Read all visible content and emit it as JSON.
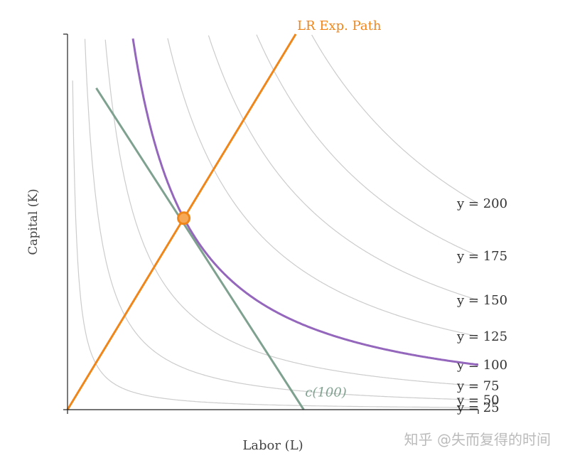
{
  "chart_data": {
    "type": "line",
    "title": "",
    "xlabel": "Labor (L)",
    "ylabel": "Capital (K)",
    "xlim": [
      0,
      10
    ],
    "ylim": [
      0,
      10
    ],
    "grid": false,
    "isoquants": [
      {
        "level": 25,
        "label": "y = 25"
      },
      {
        "level": 50,
        "label": "y = 50"
      },
      {
        "level": 75,
        "label": "y = 75"
      },
      {
        "level": 100,
        "label": "y = 100"
      },
      {
        "level": 125,
        "label": "y = 125"
      },
      {
        "level": 150,
        "label": "y = 150"
      },
      {
        "level": 175,
        "label": "y = 175"
      },
      {
        "level": 200,
        "label": "y = 200"
      }
    ],
    "highlighted_isoquant": {
      "level": 100,
      "color": "#9467bd"
    },
    "isocost": {
      "label": "c(100)",
      "color": "#7fa18f",
      "x_intercept": 5.75,
      "y_intercept": 9.75
    },
    "expansion_path": {
      "label": "LR Exp. Path",
      "color": "#f0861a",
      "slope": 1.8
    },
    "optimum": {
      "L": 2.83,
      "K": 5.1,
      "color": "#f0861a"
    },
    "colors": {
      "isoquant": "#cccccc",
      "axis": "#222222"
    }
  },
  "watermark": "知乎 @失而复得的时间"
}
